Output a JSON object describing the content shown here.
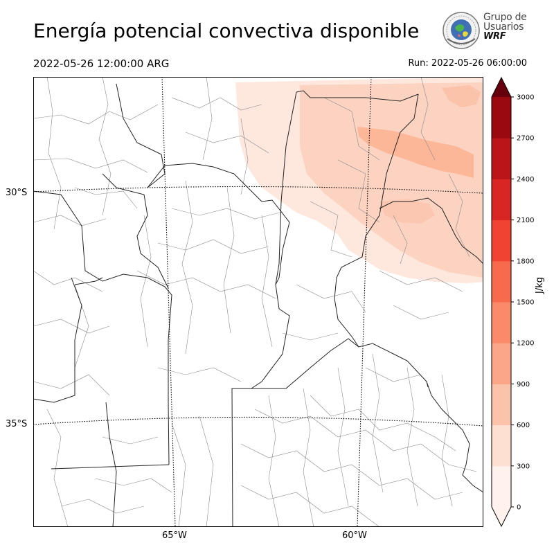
{
  "header": {
    "title": "Energía potencial convectiva disponible",
    "valid_time": "2022-05-26 12:00:00 ARG",
    "run_time": "Run: 2022-05-26 06:00:00"
  },
  "logo": {
    "line1": "Grupo de",
    "line2": "Usuarios",
    "line3": "WRF"
  },
  "map": {
    "lat_labels": [
      "30°S",
      "35°S"
    ],
    "lon_labels": [
      "65°W",
      "60°W"
    ]
  },
  "colorbar": {
    "unit": "J/kg",
    "ticks": [
      "0",
      "300",
      "600",
      "900",
      "1200",
      "1500",
      "1800",
      "2100",
      "2400",
      "2700",
      "3000"
    ],
    "colors": [
      "#fff1ec",
      "#fee0d2",
      "#fcc3ab",
      "#fca689",
      "#fb8a6a",
      "#f86a4c",
      "#f14331",
      "#d92523",
      "#bb151a",
      "#99090f",
      "#67000d"
    ]
  }
}
